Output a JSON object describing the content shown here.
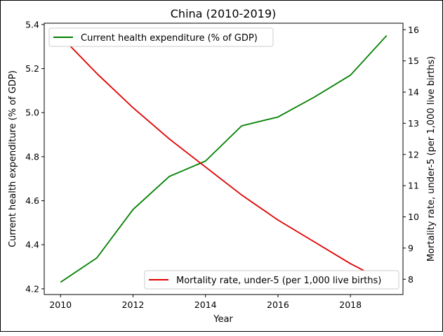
{
  "chart_data": {
    "type": "line",
    "title": "China (2010-2019)",
    "xlabel": "Year",
    "x": [
      2010,
      2011,
      2012,
      2013,
      2014,
      2015,
      2016,
      2017,
      2018,
      2019
    ],
    "xlim": [
      2009.55,
      2019.45
    ],
    "xticks": [
      2010,
      2012,
      2014,
      2016,
      2018
    ],
    "grid": false,
    "axes": {
      "left": {
        "label": "Current health expenditure (% of GDP)",
        "ylim": [
          4.174,
          5.406
        ],
        "ticks": [
          "4.2",
          "4.4",
          "4.6",
          "4.8",
          "5.0",
          "5.2",
          "5.4"
        ]
      },
      "right": {
        "label": "Mortality rate, under-5 (per 1,000 live births)",
        "ylim": [
          7.51,
          16.21
        ],
        "ticks": [
          "8",
          "9",
          "10",
          "11",
          "12",
          "13",
          "14",
          "15",
          "16"
        ]
      }
    },
    "series": [
      {
        "name": "Current health expenditure (% of GDP)",
        "axis": "left",
        "color": "#008000",
        "legend_position": "upper-left",
        "values": [
          4.23,
          4.34,
          4.56,
          4.71,
          4.78,
          4.94,
          4.98,
          5.07,
          5.17,
          5.35
        ]
      },
      {
        "name": "Mortality rate, under-5 (per 1,000 live births)",
        "axis": "right",
        "color": "#e00000",
        "legend_position": "lower-right",
        "values": [
          15.8,
          14.6,
          13.5,
          12.5,
          11.6,
          10.7,
          9.9,
          9.2,
          8.5,
          7.9
        ]
      }
    ]
  }
}
